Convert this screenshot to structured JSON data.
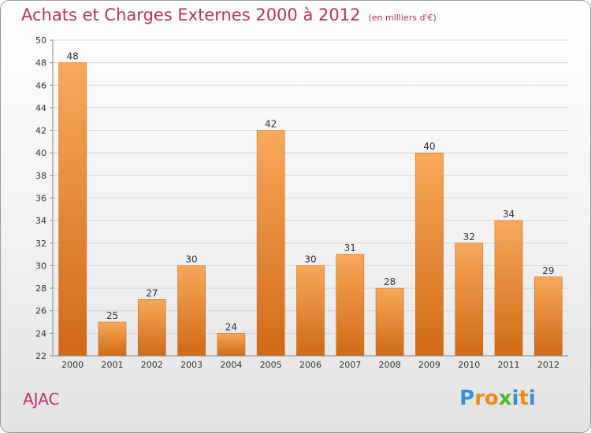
{
  "title": "Achats et Charges Externes 2000 à 2012",
  "subtitle": "(en milliers d'€)",
  "commune": "AJAC",
  "logo": {
    "text": "Proxiti",
    "letters": [
      "P",
      "r",
      "o",
      "x",
      "i",
      "t",
      "i"
    ],
    "colors": [
      "#3a8fd6",
      "#f08a1c",
      "#f08a1c",
      "#58b030",
      "#3a8fd6",
      "#f08a1c",
      "#3a8fd6"
    ]
  },
  "colors": {
    "bar_top": "#f7a85a",
    "bar_bottom": "#d06a16",
    "title": "#b5305c",
    "commune": "#c0306a"
  },
  "chart_data": {
    "type": "bar",
    "title": "Achats et Charges Externes 2000 à 2012",
    "subtitle": "(en milliers d'€)",
    "categories": [
      "2000",
      "2001",
      "2002",
      "2003",
      "2004",
      "2005",
      "2006",
      "2007",
      "2008",
      "2009",
      "2010",
      "2011",
      "2012"
    ],
    "values": [
      48,
      25,
      27,
      30,
      24,
      42,
      30,
      31,
      28,
      40,
      32,
      34,
      29
    ],
    "ylim": [
      22,
      50
    ],
    "yticks": [
      22,
      24,
      26,
      28,
      30,
      32,
      34,
      36,
      38,
      40,
      42,
      44,
      46,
      48,
      50
    ],
    "grid": true,
    "xlabel": "",
    "ylabel": ""
  }
}
